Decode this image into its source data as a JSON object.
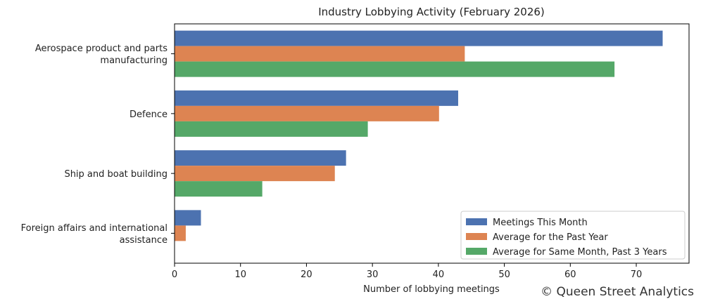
{
  "chart_data": {
    "type": "bar",
    "orientation": "horizontal",
    "title": "Industry Lobbying Activity (February 2026)",
    "xlabel": "Number of lobbying meetings",
    "ylabel": "",
    "xlim": [
      0,
      78
    ],
    "xticks": [
      0,
      10,
      20,
      30,
      40,
      50,
      60,
      70
    ],
    "categories": [
      [
        "Aerospace product and parts",
        "manufacturing"
      ],
      [
        "Defence"
      ],
      [
        "Ship and boat building"
      ],
      [
        "Foreign affairs and international",
        "assistance"
      ]
    ],
    "series": [
      {
        "name": "Meetings This Month",
        "color": "#4c72b0",
        "values": [
          74,
          43,
          26,
          4
        ]
      },
      {
        "name": "Average for the Past Year",
        "color": "#dd8452",
        "values": [
          44,
          40.1,
          24.3,
          1.7
        ]
      },
      {
        "name": "Average for Same Month, Past 3 Years",
        "color": "#55a868",
        "values": [
          66.7,
          29.3,
          13.3,
          0
        ]
      }
    ],
    "grid": false,
    "legend_position": "lower-right"
  },
  "watermark": "© Queen Street Analytics"
}
